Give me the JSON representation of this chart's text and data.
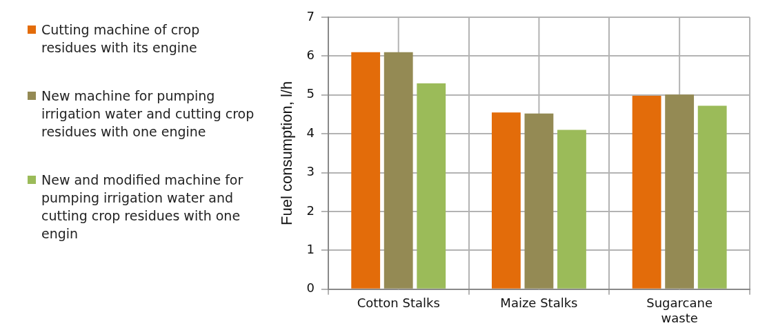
{
  "chart_data": {
    "type": "bar",
    "ylabel": "Fuel consumption, l/h",
    "categories": [
      "Cotton Stalks",
      "Maize Stalks",
      "Sugarcane waste"
    ],
    "series": [
      {
        "name": "Cutting machine of crop residues with its engine",
        "color": "#e36c0a",
        "values": [
          6.1,
          4.55,
          4.98
        ]
      },
      {
        "name": "New machine for pumping irrigation water and cutting crop residues with one engine",
        "color": "#948a54",
        "values": [
          6.1,
          4.52,
          5.01
        ]
      },
      {
        "name": "New and modified machine for pumping irrigation water and cutting crop residues with one engin",
        "color": "#9bbb59",
        "values": [
          5.3,
          4.1,
          4.72
        ]
      }
    ],
    "ylim": [
      0,
      7
    ],
    "yticks": [
      0,
      1,
      2,
      3,
      4,
      5,
      6,
      7
    ],
    "grid": true,
    "legend": "left"
  }
}
